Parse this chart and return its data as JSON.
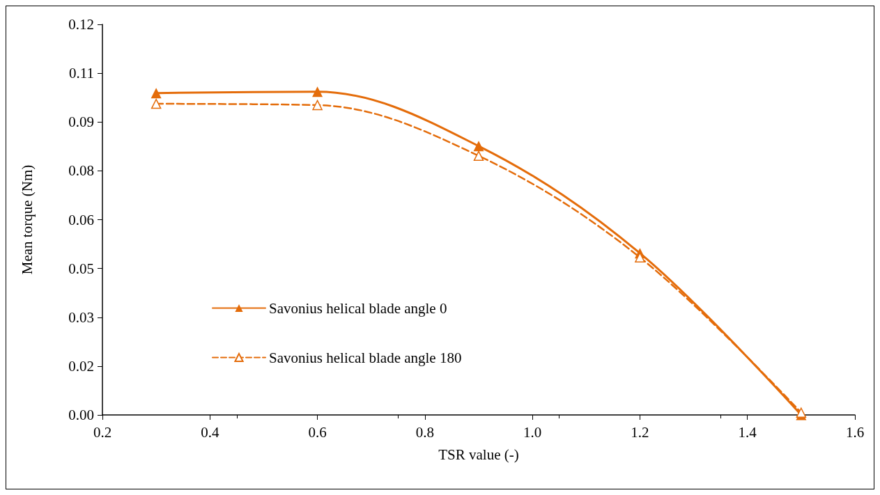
{
  "chart_data": {
    "type": "line",
    "xlabel": "TSR value (-)",
    "ylabel": "Mean torque (Nm)",
    "xlim": [
      0.2,
      1.6
    ],
    "xticks": [
      0.2,
      0.4,
      0.6,
      0.8,
      {
        "value": 1,
        "label": "1.0"
      },
      1.2,
      1.4,
      1.6
    ],
    "ylim": [
      0,
      0.12
    ],
    "yticks": [
      {
        "value": 0,
        "label": "0.00"
      },
      {
        "value": 0.015,
        "label": "0.02"
      },
      {
        "value": 0.03,
        "label": "0.03"
      },
      {
        "value": 0.045,
        "label": "0.05"
      },
      {
        "value": 0.06,
        "label": "0.06"
      },
      {
        "value": 0.075,
        "label": "0.08"
      },
      {
        "value": 0.09,
        "label": "0.09"
      },
      {
        "value": 0.105,
        "label": "0.11"
      },
      {
        "value": 0.12,
        "label": "0.12"
      }
    ],
    "x": [
      0.3,
      0.6,
      0.9,
      1.2,
      1.5
    ],
    "series": [
      {
        "name": "Savonius helical blade angle 0",
        "color": "#e46c0a",
        "values": [
          0.0989,
          0.0993,
          0.0826,
          0.0497,
          0
        ],
        "line_style": "solid"
      },
      {
        "name": "Savonius helical blade angle 180",
        "color": "#e46c0a",
        "values": [
          0.0956,
          0.0952,
          0.0796,
          0.0484,
          0.0007
        ],
        "line_style": "dashed"
      }
    ],
    "marker": "triangle",
    "grid": false,
    "legend": "bottom left"
  }
}
